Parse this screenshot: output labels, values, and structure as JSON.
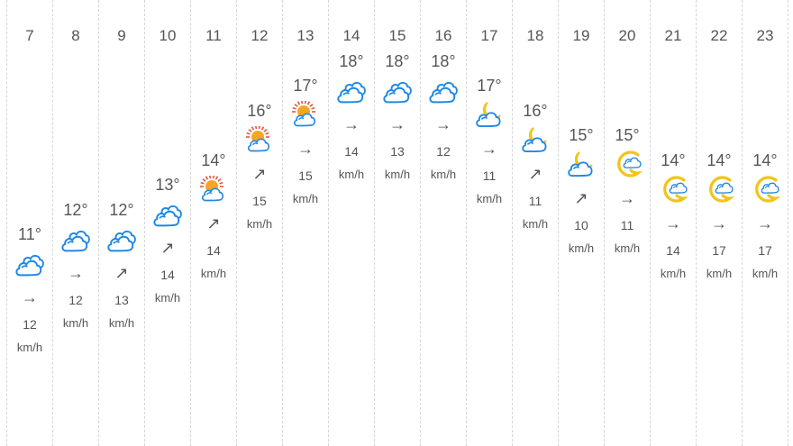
{
  "forecast": [
    {
      "hour": "7",
      "temp": "11°",
      "icon": "cloudy-icon",
      "arrow": "→",
      "wind": "12",
      "unit": "km/h"
    },
    {
      "hour": "8",
      "temp": "12°",
      "icon": "cloudy-icon",
      "arrow": "→",
      "wind": "12",
      "unit": "km/h"
    },
    {
      "hour": "9",
      "temp": "12°",
      "icon": "cloudy-icon",
      "arrow": "↗",
      "wind": "13",
      "unit": "km/h"
    },
    {
      "hour": "10",
      "temp": "13°",
      "icon": "cloudy-icon",
      "arrow": "↗",
      "wind": "14",
      "unit": "km/h"
    },
    {
      "hour": "11",
      "temp": "14°",
      "icon": "sun-behind-cloud-icon",
      "arrow": "↗",
      "wind": "14",
      "unit": "km/h"
    },
    {
      "hour": "12",
      "temp": "16°",
      "icon": "sun-behind-cloud-icon",
      "arrow": "↗",
      "wind": "15",
      "unit": "km/h"
    },
    {
      "hour": "13",
      "temp": "17°",
      "icon": "sun-behind-cloud-icon",
      "arrow": "→",
      "wind": "15",
      "unit": "km/h"
    },
    {
      "hour": "14",
      "temp": "18°",
      "icon": "cloudy-icon",
      "arrow": "→",
      "wind": "14",
      "unit": "km/h"
    },
    {
      "hour": "15",
      "temp": "18°",
      "icon": "cloudy-icon",
      "arrow": "→",
      "wind": "13",
      "unit": "km/h"
    },
    {
      "hour": "16",
      "temp": "18°",
      "icon": "cloudy-icon",
      "arrow": "→",
      "wind": "12",
      "unit": "km/h"
    },
    {
      "hour": "17",
      "temp": "17°",
      "icon": "moon-behind-cloud-icon",
      "arrow": "→",
      "wind": "11",
      "unit": "km/h"
    },
    {
      "hour": "18",
      "temp": "16°",
      "icon": "moon-behind-cloud-icon",
      "arrow": "↗",
      "wind": "11",
      "unit": "km/h"
    },
    {
      "hour": "19",
      "temp": "15°",
      "icon": "moon-behind-cloud-icon",
      "arrow": "↗",
      "wind": "10",
      "unit": "km/h"
    },
    {
      "hour": "20",
      "temp": "15°",
      "icon": "moon-with-cloud-icon",
      "arrow": "→",
      "wind": "11",
      "unit": "km/h"
    },
    {
      "hour": "21",
      "temp": "14°",
      "icon": "moon-with-cloud-icon",
      "arrow": "→",
      "wind": "14",
      "unit": "km/h"
    },
    {
      "hour": "22",
      "temp": "14°",
      "icon": "moon-with-cloud-icon",
      "arrow": "→",
      "wind": "17",
      "unit": "km/h"
    },
    {
      "hour": "23",
      "temp": "14°",
      "icon": "moon-with-cloud-icon",
      "arrow": "→",
      "wind": "17",
      "unit": "km/h"
    }
  ],
  "colors": {
    "cloud_stroke": "#1e88e5",
    "sun": "#f5a623",
    "sun_ray": "#e8553b",
    "moon": "#f2c418"
  }
}
